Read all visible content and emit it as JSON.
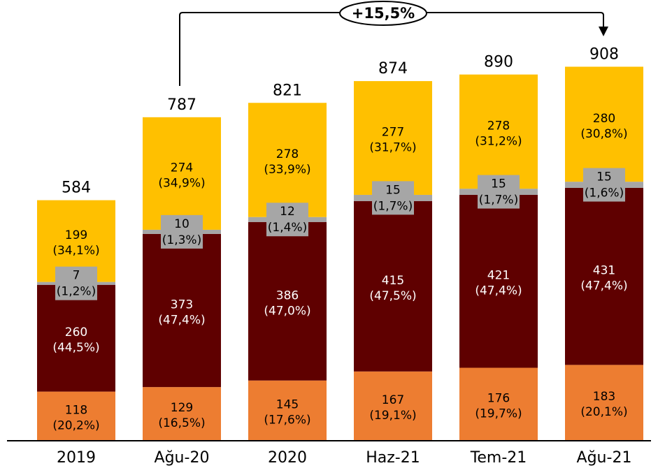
{
  "chart_data": {
    "type": "bar",
    "stacked": true,
    "categories": [
      "2019",
      "Ağu-20",
      "2020",
      "Haz-21",
      "Tem-21",
      "Ağu-21"
    ],
    "totals": [
      "584",
      "787",
      "821",
      "874",
      "890",
      "908"
    ],
    "series": [
      {
        "color": "#ED7D31",
        "values": [
          118,
          129,
          145,
          167,
          176,
          183
        ],
        "labels": [
          "118",
          "129",
          "145",
          "167",
          "176",
          "183"
        ],
        "pct_labels": [
          "(20,2%)",
          "(16,5%)",
          "(17,6%)",
          "(19,1%)",
          "(19,7%)",
          "(20,1%)"
        ],
        "text_color": "#000000"
      },
      {
        "color": "#5F0000",
        "values": [
          260,
          373,
          386,
          415,
          421,
          431
        ],
        "labels": [
          "260",
          "373",
          "386",
          "415",
          "421",
          "431"
        ],
        "pct_labels": [
          "(44,5%)",
          "(47,4%)",
          "(47,0%)",
          "(47,5%)",
          "(47,4%)",
          "(47,4%)"
        ],
        "text_color": "#ffffff"
      },
      {
        "color": "#A6A6A6",
        "values": [
          7,
          10,
          12,
          15,
          15,
          15
        ],
        "labels": [
          "7",
          "10",
          "12",
          "15",
          "15",
          "15"
        ],
        "pct_labels": [
          "(1,2%)",
          "(1,3%)",
          "(1,4%)",
          "(1,7%)",
          "(1,7%)",
          "(1,6%)"
        ],
        "text_color": "#000000"
      },
      {
        "color": "#FFC000",
        "values": [
          199,
          274,
          278,
          277,
          278,
          280
        ],
        "labels": [
          "199",
          "274",
          "278",
          "277",
          "278",
          "280"
        ],
        "pct_labels": [
          "(34,1%)",
          "(34,9%)",
          "(33,9%)",
          "(31,7%)",
          "(31,2%)",
          "(30,8%)"
        ],
        "text_color": "#000000"
      }
    ],
    "ylim": [
      0,
      1000
    ],
    "grid": false,
    "annotation": {
      "text": "+15,5%",
      "from_category": "Ağu-20",
      "to_category": "Ağu-21"
    }
  }
}
